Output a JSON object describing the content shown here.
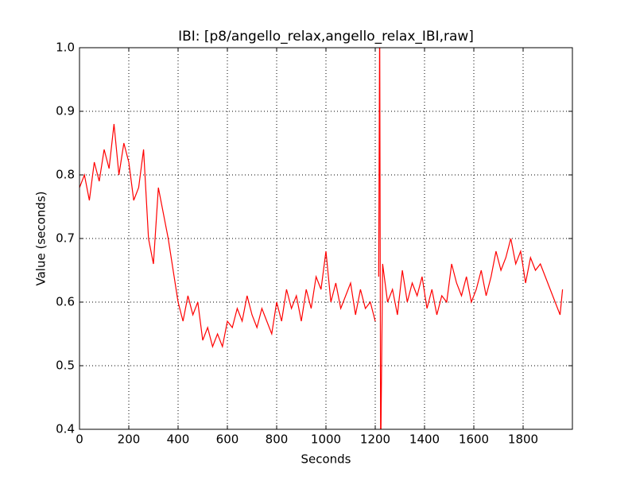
{
  "chart_data": {
    "type": "line",
    "title": "IBI: [p8/angello_relax,angello_relax_IBI,raw]",
    "x_label": "Seconds",
    "y_label": "Value (seconds)",
    "color": "#ff0000",
    "grid": true,
    "xlim": [
      0,
      2000
    ],
    "xticks": [
      0,
      200,
      400,
      600,
      800,
      1000,
      1200,
      1400,
      1600,
      1800
    ],
    "ylim": [
      0.4,
      1.0
    ],
    "yticks": [
      0.4,
      0.5,
      0.6,
      0.7,
      0.8,
      0.9,
      {
        "value": 1,
        "label": "1.0"
      }
    ],
    "x": [
      0,
      20,
      40,
      60,
      80,
      100,
      120,
      140,
      160,
      180,
      200,
      220,
      240,
      260,
      280,
      300,
      320,
      340,
      360,
      380,
      400,
      420,
      440,
      460,
      480,
      500,
      520,
      540,
      560,
      580,
      600,
      620,
      640,
      660,
      680,
      700,
      720,
      740,
      760,
      780,
      800,
      820,
      840,
      860,
      880,
      900,
      920,
      940,
      960,
      980,
      1000,
      1020,
      1040,
      1060,
      1080,
      1100,
      1120,
      1140,
      1160,
      1180,
      1200,
      1208,
      1214,
      1218,
      1222,
      1230,
      1250,
      1270,
      1290,
      1310,
      1330,
      1350,
      1370,
      1390,
      1410,
      1430,
      1450,
      1470,
      1490,
      1510,
      1530,
      1550,
      1570,
      1590,
      1610,
      1630,
      1650,
      1670,
      1690,
      1710,
      1730,
      1750,
      1770,
      1790,
      1810,
      1830,
      1850,
      1870,
      1890,
      1910,
      1930,
      1950,
      1960
    ],
    "values": [
      0.78,
      0.8,
      0.76,
      0.82,
      0.79,
      0.84,
      0.81,
      0.88,
      0.8,
      0.85,
      0.82,
      0.76,
      0.78,
      0.84,
      0.7,
      0.66,
      0.78,
      0.74,
      0.7,
      0.65,
      0.6,
      0.57,
      0.61,
      0.58,
      0.6,
      0.54,
      0.56,
      0.53,
      0.55,
      0.53,
      0.57,
      0.56,
      0.59,
      0.57,
      0.61,
      0.58,
      0.56,
      0.59,
      0.57,
      0.55,
      0.6,
      0.57,
      0.62,
      0.59,
      0.61,
      0.57,
      0.62,
      0.59,
      0.64,
      0.62,
      0.68,
      0.6,
      0.63,
      0.59,
      0.61,
      0.63,
      0.58,
      0.62,
      0.59,
      0.6,
      0.57,
      null,
      0.64,
      1.05,
      0.35,
      0.66,
      0.6,
      0.62,
      0.58,
      0.65,
      0.6,
      0.63,
      0.61,
      0.64,
      0.59,
      0.62,
      0.58,
      0.61,
      0.6,
      0.66,
      0.63,
      0.61,
      0.64,
      0.6,
      0.62,
      0.65,
      0.61,
      0.64,
      0.68,
      0.65,
      0.67,
      0.7,
      0.66,
      0.68,
      0.63,
      0.67,
      0.65,
      0.66,
      0.64,
      0.62,
      0.6,
      0.58,
      0.62
    ]
  }
}
